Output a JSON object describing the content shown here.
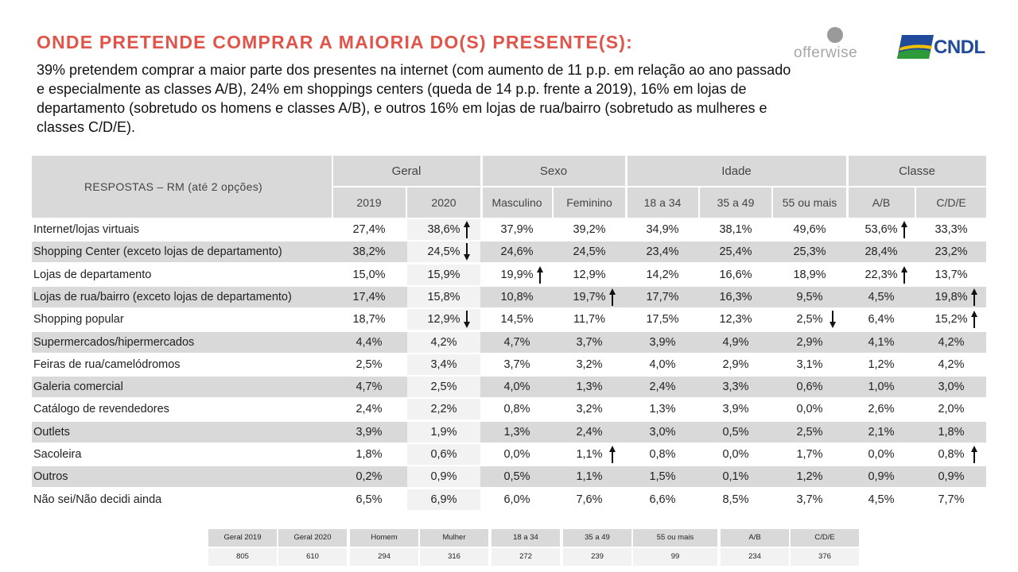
{
  "title": "ONDE PRETENDE COMPRAR A MAIORIA DO(S) PRESENTE(S):",
  "subtitle": "39% pretendem comprar a maior parte dos presentes na internet (com aumento de 11 p.p. em relação ao ano passado e especialmente as classes A/B), 24% em shoppings centers (queda de 14 p.p. frente a 2019), 16% em lojas de departamento (sobretudo os homens e classes A/B), e outros 16% em lojas de rua/bairro (sobretudo as mulheres e classes C/D/E).",
  "logos": {
    "offerwise": "offerwise",
    "cndl": "CNDL"
  },
  "table": {
    "respostas_label": "RESPOSTAS – RM (até 2 opções)",
    "groups": [
      "Geral",
      "Sexo",
      "Idade",
      "Classe"
    ],
    "columns": [
      "2019",
      "2020",
      "Masculino",
      "Feminino",
      "18 a 34",
      "35 a 49",
      "55 ou mais",
      "A/B",
      "C/D/E"
    ],
    "rows": [
      {
        "label": "Internet/lojas virtuais",
        "values": [
          "27,4%",
          "38,6%",
          "37,9%",
          "39,2%",
          "34,9%",
          "38,1%",
          "49,6%",
          "53,6%",
          "33,3%"
        ],
        "arrows": [
          "",
          "up",
          "",
          "",
          "",
          "",
          "",
          "up",
          ""
        ]
      },
      {
        "label": "Shopping Center (exceto lojas de departamento)",
        "values": [
          "38,2%",
          "24,5%",
          "24,6%",
          "24,5%",
          "23,4%",
          "25,4%",
          "25,3%",
          "28,4%",
          "23,2%"
        ],
        "arrows": [
          "",
          "down",
          "",
          "",
          "",
          "",
          "",
          "",
          ""
        ]
      },
      {
        "label": "Lojas de departamento",
        "values": [
          "15,0%",
          "15,9%",
          "19,9%",
          "12,9%",
          "14,2%",
          "16,6%",
          "18,9%",
          "22,3%",
          "13,7%"
        ],
        "arrows": [
          "",
          "",
          "up",
          "",
          "",
          "",
          "",
          "up",
          ""
        ]
      },
      {
        "label": "Lojas de rua/bairro (exceto lojas de departamento)",
        "values": [
          "17,4%",
          "15,8%",
          "10,8%",
          "19,7%",
          "17,7%",
          "16,3%",
          "9,5%",
          "4,5%",
          "19,8%"
        ],
        "arrows": [
          "",
          "",
          "",
          "up",
          "",
          "",
          "",
          "",
          "up"
        ]
      },
      {
        "label": "Shopping popular",
        "values": [
          "18,7%",
          "12,9%",
          "14,5%",
          "11,7%",
          "17,5%",
          "12,3%",
          "2,5%",
          "6,4%",
          "15,2%"
        ],
        "arrows": [
          "",
          "down",
          "",
          "",
          "",
          "",
          "down",
          "",
          "up"
        ]
      },
      {
        "label": "Supermercados/hipermercados",
        "values": [
          "4,4%",
          "4,2%",
          "4,7%",
          "3,7%",
          "3,9%",
          "4,9%",
          "2,9%",
          "4,1%",
          "4,2%"
        ],
        "arrows": [
          "",
          "",
          "",
          "",
          "",
          "",
          "",
          "",
          ""
        ]
      },
      {
        "label": "Feiras de rua/camelódromos",
        "values": [
          "2,5%",
          "3,4%",
          "3,7%",
          "3,2%",
          "4,0%",
          "2,9%",
          "3,1%",
          "1,2%",
          "4,2%"
        ],
        "arrows": [
          "",
          "",
          "",
          "",
          "",
          "",
          "",
          "",
          ""
        ]
      },
      {
        "label": "Galeria comercial",
        "values": [
          "4,7%",
          "2,5%",
          "4,0%",
          "1,3%",
          "2,4%",
          "3,3%",
          "0,6%",
          "1,0%",
          "3,0%"
        ],
        "arrows": [
          "",
          "",
          "",
          "",
          "",
          "",
          "",
          "",
          ""
        ]
      },
      {
        "label": "Catálogo de revendedores",
        "values": [
          "2,4%",
          "2,2%",
          "0,8%",
          "3,2%",
          "1,3%",
          "3,9%",
          "0,0%",
          "2,6%",
          "2,0%"
        ],
        "arrows": [
          "",
          "",
          "",
          "",
          "",
          "",
          "",
          "",
          ""
        ]
      },
      {
        "label": "Outlets",
        "values": [
          "3,9%",
          "1,9%",
          "1,3%",
          "2,4%",
          "3,0%",
          "0,5%",
          "2,5%",
          "2,1%",
          "1,8%"
        ],
        "arrows": [
          "",
          "",
          "",
          "",
          "",
          "",
          "",
          "",
          ""
        ]
      },
      {
        "label": "Sacoleira",
        "values": [
          "1,8%",
          "0,6%",
          "0,0%",
          "1,1%",
          "0,8%",
          "0,0%",
          "1,7%",
          "0,0%",
          "0,8%"
        ],
        "arrows": [
          "",
          "",
          "",
          "up",
          "",
          "",
          "",
          "",
          "up"
        ]
      },
      {
        "label": "Outros",
        "values": [
          "0,2%",
          "0,9%",
          "0,5%",
          "1,1%",
          "1,5%",
          "0,1%",
          "1,2%",
          "0,9%",
          "0,9%"
        ],
        "arrows": [
          "",
          "",
          "",
          "",
          "",
          "",
          "",
          "",
          ""
        ]
      },
      {
        "label": "Não sei/Não decidi ainda",
        "values": [
          "6,5%",
          "6,9%",
          "6,0%",
          "7,6%",
          "6,6%",
          "8,5%",
          "3,7%",
          "4,5%",
          "7,7%"
        ],
        "arrows": [
          "",
          "",
          "",
          "",
          "",
          "",
          "",
          "",
          ""
        ]
      }
    ]
  },
  "base": {
    "headers": [
      "Geral 2019",
      "Geral 2020",
      "Homem",
      "Mulher",
      "18 a 34",
      "35 a 49",
      "55 ou mais",
      "A/B",
      "C/D/E"
    ],
    "values": [
      "805",
      "610",
      "294",
      "316",
      "272",
      "239",
      "99",
      "234",
      "376"
    ]
  },
  "colors": {
    "title": "#e0554a",
    "band": "#d9d9d9",
    "highlight": "#f2f2f2",
    "cndl_blue": "#1f4b9a"
  }
}
